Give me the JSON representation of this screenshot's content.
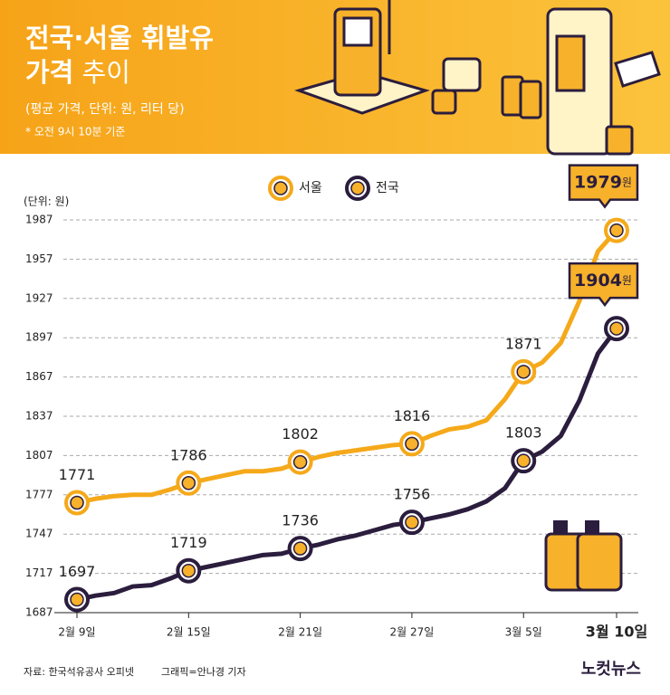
{
  "header": {
    "title_line1": "전국·서울 휘발유",
    "title_line2_bold": "가격",
    "title_line2_light": "추이",
    "subtitle": "(평균 가격, 단위: 원, 리터 당)",
    "note": "* 오전 9시 10분 기준"
  },
  "chart_data": {
    "type": "line",
    "y_label": "(단위: 원)",
    "callout_unit": "원",
    "categories": [
      "2월 9일",
      null,
      null,
      null,
      null,
      null,
      "2월 15일",
      null,
      null,
      null,
      null,
      null,
      "2월 21일",
      null,
      null,
      null,
      null,
      null,
      "2월 27일",
      null,
      null,
      null,
      null,
      null,
      "3월 5일",
      null,
      null,
      null,
      null,
      "3월 10일"
    ],
    "series": [
      {
        "name": "서울",
        "color": "#f5a91a",
        "values": [
          1771,
          1774,
          1776,
          1777,
          1777,
          1781,
          1786,
          1789,
          1792,
          1795,
          1795,
          1797,
          1802,
          1806,
          1809,
          1811,
          1813,
          1815,
          1816,
          1822,
          1827,
          1829,
          1834,
          1850,
          1871,
          1878,
          1893,
          1925,
          1963,
          1979
        ]
      },
      {
        "name": "전국",
        "color": "#2b1d3d",
        "values": [
          1697,
          1700,
          1702,
          1707,
          1708,
          1713,
          1719,
          1722,
          1725,
          1728,
          1731,
          1732,
          1736,
          1739,
          1743,
          1746,
          1750,
          1754,
          1756,
          1759,
          1762,
          1766,
          1772,
          1782,
          1803,
          1810,
          1822,
          1849,
          1885,
          1904
        ]
      }
    ],
    "ylim": [
      1687,
      1987
    ],
    "yticks": [
      1687,
      1717,
      1747,
      1777,
      1807,
      1837,
      1867,
      1897,
      1927,
      1957,
      1987
    ],
    "grid": true
  },
  "footer": {
    "source": "자료: 한국석유공사 오피넷",
    "credit": "그래픽=안나경 기자",
    "logo": "노컷뉴스"
  }
}
